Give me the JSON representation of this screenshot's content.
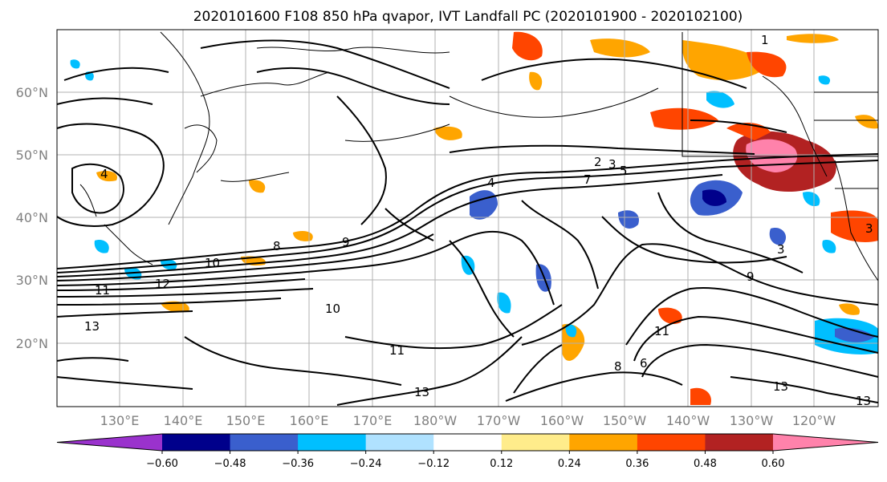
{
  "title": "2020101600 F108 850 hPa qvapor, IVT Landfall PC (2020101900 - 2020102100)",
  "lat_ticks": [
    "60°N",
    "50°N",
    "40°N",
    "30°N",
    "20°N"
  ],
  "lon_ticks": [
    "130°E",
    "140°E",
    "150°E",
    "160°E",
    "170°E",
    "180°W",
    "170°W",
    "160°W",
    "150°W",
    "140°W",
    "130°W",
    "120°W"
  ],
  "colorbar": {
    "ticks": [
      "−0.60",
      "−0.48",
      "−0.36",
      "−0.24",
      "−0.12",
      "0.12",
      "0.24",
      "0.36",
      "0.48",
      "0.60"
    ],
    "colors": [
      "#9a32cd",
      "#00008b",
      "#3a5fcd",
      "#00bfff",
      "#b0e2ff",
      "#ffffff",
      "#ffec8b",
      "#ffa500",
      "#ff4500",
      "#b22222",
      "#ff82ab"
    ]
  },
  "contour_labels": [
    "1",
    "2",
    "3",
    "4",
    "5",
    "7",
    "8",
    "9",
    "10",
    "10",
    "11",
    "11",
    "12",
    "13",
    "13",
    "13",
    "13",
    "11",
    "6",
    "8",
    "9",
    "3",
    "3",
    "4"
  ]
}
